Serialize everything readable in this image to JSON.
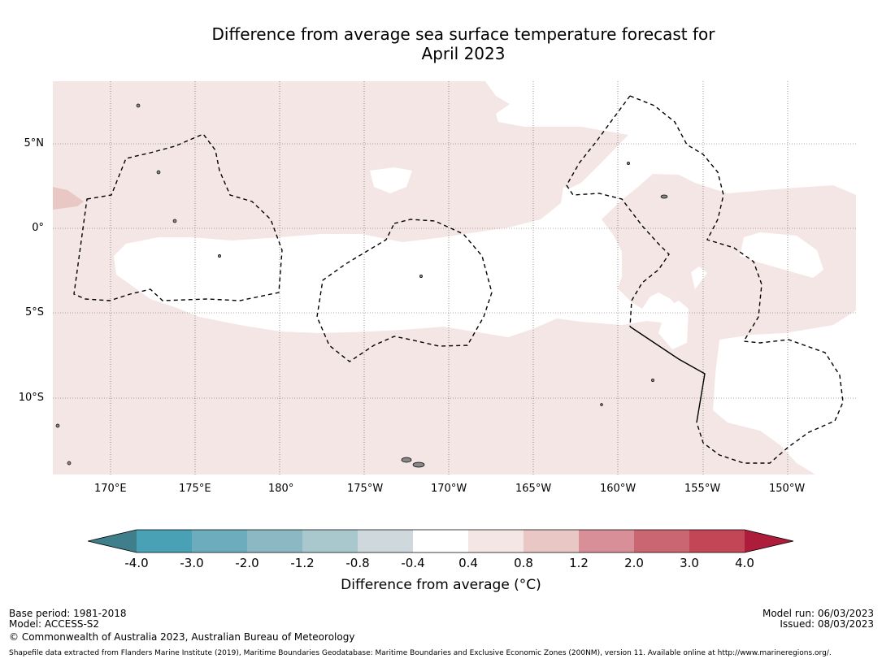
{
  "title": {
    "line1": "Difference from average sea surface temperature forecast for",
    "line2": "April 2023"
  },
  "map": {
    "lon_labels": [
      "170°E",
      "175°E",
      "180°",
      "175°W",
      "170°W",
      "165°W",
      "160°W",
      "155°W",
      "150°W"
    ],
    "lat_labels": [
      "5°N",
      "0°",
      "5°S",
      "10°S"
    ],
    "colors": {
      "anomaly_0_4_to_0_8": "#f4e6e5",
      "anomaly_0_8_to_1_2": "#e8c7c4",
      "neutral": "#ffffff",
      "land": "#888888",
      "boundary": "#000000"
    }
  },
  "colorbar": {
    "ticks": [
      "-4.0",
      "-3.0",
      "-2.0",
      "-1.2",
      "-0.8",
      "-0.4",
      "0.4",
      "0.8",
      "1.2",
      "2.0",
      "3.0",
      "4.0"
    ],
    "colors": [
      "#3f7f8c",
      "#48a1b5",
      "#6cacbc",
      "#8cb8c3",
      "#a9c8cd",
      "#cfd8dc",
      "#ffffff",
      "#f4e6e5",
      "#e8c7c4",
      "#d88f97",
      "#ca6572",
      "#c24656",
      "#ad1c3a"
    ],
    "title": "Difference from average (°C)"
  },
  "footer": {
    "base_period": "Base period: 1981-2018",
    "model": "Model: ACCESS-S2",
    "copyright": "© Commonwealth of Australia 2023, Australian Bureau of Meteorology",
    "model_run": "Model run: 06/03/2023",
    "issued": "Issued: 08/03/2023",
    "shapefile": "Shapefile data extracted from Flanders Marine Institute (2019), Maritime Boundaries Geodatabase: Maritime Boundaries and Exclusive Economic Zones (200NM), version 11. Available online at http://www.marineregions.org/."
  }
}
